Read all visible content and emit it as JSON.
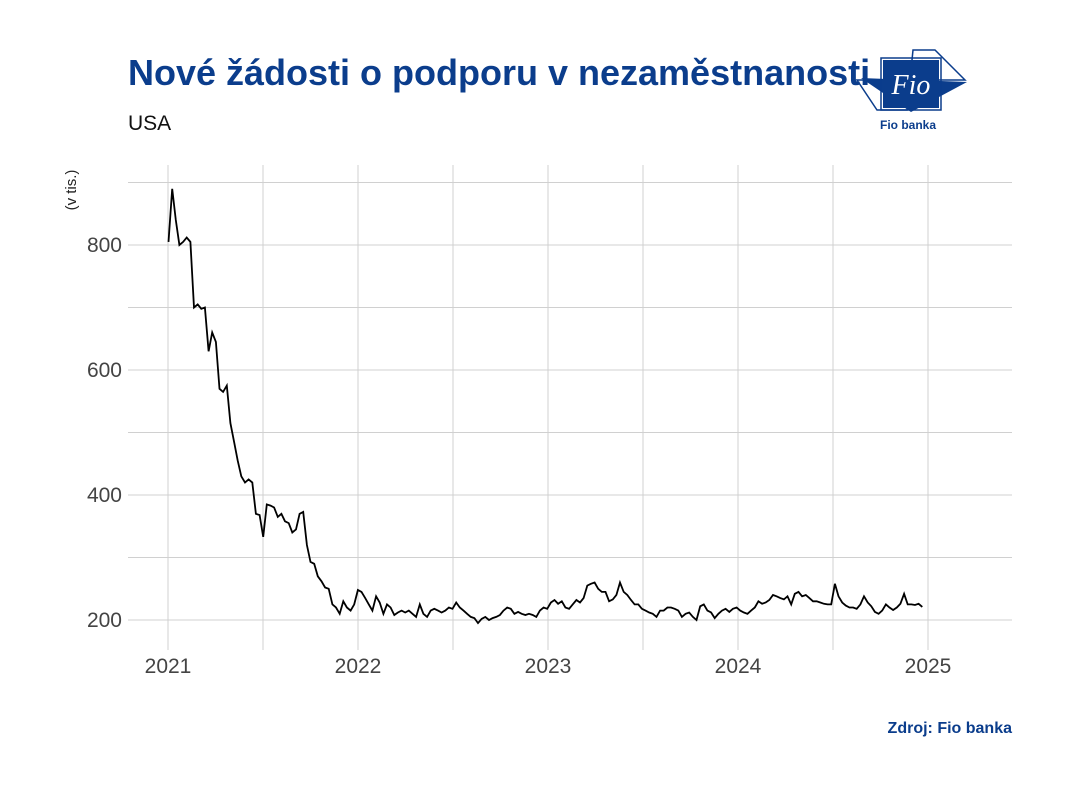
{
  "title": "Nové žádosti o podporu v nezaměstnanosti",
  "subtitle": "USA",
  "source": "Zdroj: Fio banka",
  "logo": {
    "mark": "Fio",
    "caption": "Fio banka"
  },
  "colors": {
    "brand": "#0b3d8c",
    "line": "#000000",
    "grid": "#d0d0d0"
  },
  "chart_data": {
    "type": "line",
    "title": "Nové žádosti o podporu v nezaměstnanosti",
    "subtitle": "USA",
    "ylabel": "(v tis.)",
    "xlabel": "",
    "grid": true,
    "legend": "none",
    "ylim": [
      160,
      900
    ],
    "yticks": [
      200,
      400,
      600,
      800
    ],
    "xticks": [
      "2021",
      "2022",
      "2023",
      "2024",
      "2025"
    ],
    "x_start": "2021-01-02",
    "x_step_days": 7,
    "series": [
      {
        "name": "",
        "values": [
          805,
          890,
          840,
          800,
          805,
          812,
          805,
          700,
          705,
          698,
          700,
          630,
          660,
          645,
          570,
          565,
          575,
          515,
          485,
          455,
          430,
          420,
          425,
          420,
          370,
          368,
          333,
          385,
          383,
          380,
          365,
          370,
          358,
          355,
          340,
          345,
          370,
          373,
          320,
          293,
          290,
          270,
          262,
          252,
          250,
          225,
          220,
          210,
          230,
          220,
          215,
          225,
          248,
          245,
          235,
          225,
          215,
          238,
          228,
          210,
          225,
          220,
          208,
          212,
          215,
          212,
          215,
          210,
          205,
          225,
          210,
          205,
          215,
          218,
          215,
          212,
          215,
          220,
          218,
          228,
          220,
          215,
          210,
          205,
          203,
          195,
          202,
          205,
          200,
          203,
          205,
          208,
          215,
          220,
          218,
          210,
          213,
          210,
          208,
          210,
          208,
          205,
          215,
          220,
          218,
          228,
          232,
          226,
          230,
          220,
          218,
          225,
          232,
          228,
          235,
          255,
          258,
          260,
          250,
          245,
          245,
          230,
          233,
          240,
          260,
          245,
          240,
          232,
          225,
          225,
          218,
          215,
          212,
          210,
          205,
          215,
          215,
          220,
          220,
          218,
          215,
          205,
          210,
          212,
          205,
          200,
          222,
          225,
          215,
          212,
          203,
          210,
          215,
          218,
          213,
          218,
          220,
          215,
          212,
          210,
          215,
          220,
          230,
          226,
          228,
          232,
          240,
          238,
          235,
          233,
          238,
          225,
          242,
          245,
          238,
          240,
          235,
          230,
          230,
          228,
          226,
          225,
          225,
          258,
          238,
          228,
          223,
          220,
          220,
          218,
          225,
          238,
          228,
          222,
          213,
          210,
          215,
          225,
          220,
          216,
          220,
          226,
          242,
          225,
          225,
          224,
          226,
          221
        ]
      }
    ]
  }
}
